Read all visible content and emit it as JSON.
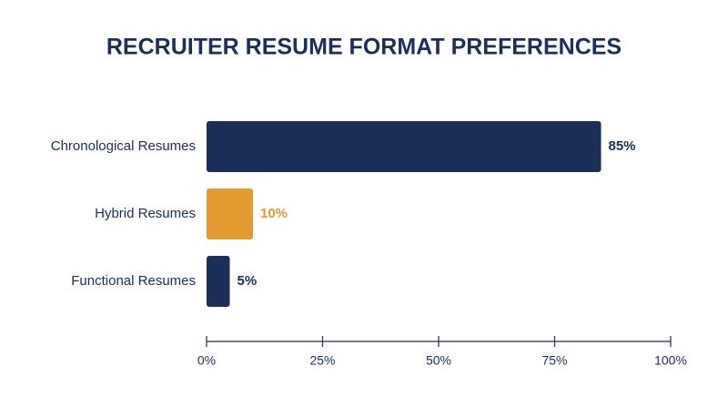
{
  "chart_data": {
    "type": "bar",
    "orientation": "horizontal",
    "title": "RECRUITER RESUME FORMAT PREFERENCES",
    "categories": [
      "Chronological Resumes",
      "Hybrid Resumes",
      "Functional Resumes"
    ],
    "values": [
      85,
      10,
      5
    ],
    "value_labels": [
      "85%",
      "10%",
      "5%"
    ],
    "colors": [
      "#1b2f57",
      "#e39b33",
      "#1b2f57"
    ],
    "xlim": [
      0,
      100
    ],
    "xticks": [
      {
        "value": 0,
        "label": "0%"
      },
      {
        "value": 25,
        "label": "25%"
      },
      {
        "value": 50,
        "label": "50%"
      },
      {
        "value": 75,
        "label": "75%"
      },
      {
        "value": 100,
        "label": "100%"
      }
    ],
    "grid": false
  }
}
